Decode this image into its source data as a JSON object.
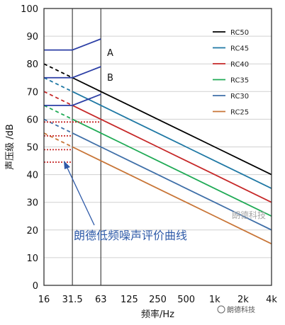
{
  "chart_data": {
    "type": "line",
    "title": "",
    "xlabel": "频率/Hz",
    "ylabel": "声压级 /dB",
    "categories": [
      "16",
      "31.5",
      "63",
      "125",
      "250",
      "500",
      "1k",
      "2k",
      "4k"
    ],
    "ylim": [
      0,
      100
    ],
    "yticks": [
      "0",
      "10",
      "20",
      "30",
      "40",
      "50",
      "60",
      "70",
      "80",
      "90",
      "100"
    ],
    "grid": "horizontal",
    "legend_position": "top-right",
    "series": [
      {
        "name": "RC50",
        "color": "#000000",
        "values": [
          null,
          75,
          70,
          65,
          60,
          55,
          50,
          45,
          40
        ],
        "dashed_values": [
          80,
          75
        ]
      },
      {
        "name": "RC45",
        "color": "#1f78a4",
        "values": [
          null,
          70,
          65,
          60,
          55,
          50,
          45,
          40,
          35
        ],
        "dashed_values": [
          75,
          70
        ]
      },
      {
        "name": "RC40",
        "color": "#c62828",
        "values": [
          null,
          65,
          60,
          55,
          50,
          45,
          40,
          35,
          30
        ],
        "dashed_values": [
          70,
          65
        ]
      },
      {
        "name": "RC35",
        "color": "#1faa55",
        "values": [
          null,
          60,
          55,
          50,
          45,
          40,
          35,
          30,
          25
        ],
        "dashed_values": [
          65,
          60
        ]
      },
      {
        "name": "RC30",
        "color": "#3f6fa8",
        "values": [
          null,
          55,
          50,
          45,
          40,
          35,
          30,
          25,
          20
        ],
        "dashed_values": [
          60,
          55
        ]
      },
      {
        "name": "RC25",
        "color": "#c87537",
        "values": [
          null,
          50,
          45,
          40,
          35,
          30,
          25,
          20,
          15
        ],
        "dashed_values": [
          55,
          50
        ]
      }
    ],
    "region_lines": {
      "color": "#2c3fa6",
      "A": [
        [
          0,
          85
        ],
        [
          1,
          85
        ],
        [
          2,
          89
        ]
      ],
      "B": [
        [
          0,
          75
        ],
        [
          1,
          75
        ],
        [
          2,
          79
        ]
      ],
      "C": [
        [
          0,
          65
        ],
        [
          1,
          65
        ],
        [
          2,
          69
        ]
      ]
    },
    "dotted_lines": [
      {
        "color": "#c62828",
        "y": 59,
        "x_from": 0,
        "x_to": 2
      },
      {
        "color": "#c62828",
        "y": 54,
        "x_from": 0,
        "x_to": 1
      },
      {
        "color": "#c62828",
        "y": 49,
        "x_from": 0,
        "x_to": 1
      },
      {
        "color": "#c62828",
        "y": 44.5,
        "x_from": 0,
        "x_to": 1
      }
    ],
    "annotations": {
      "label_a": "A",
      "label_b": "B",
      "caption": "朗德低频噪声评价曲线",
      "watermark": "朗德科技"
    }
  },
  "footer_watermark": "朗德科技"
}
